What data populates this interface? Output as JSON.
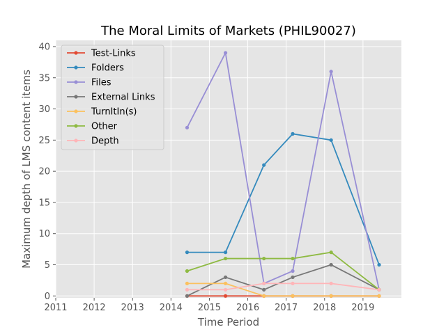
{
  "chart_data": {
    "type": "line",
    "title": "The Moral Limits of Markets (PHIL90027)",
    "xlabel": "Time Period",
    "ylabel": "Maximum depth of LMS content items",
    "xlim": [
      2011.0,
      2020.0
    ],
    "ylim": [
      -0.3,
      41.0
    ],
    "xticks": [
      2011,
      2012,
      2013,
      2014,
      2015,
      2016,
      2017,
      2018,
      2019
    ],
    "yticks": [
      0,
      5,
      10,
      15,
      20,
      25,
      30,
      35,
      40
    ],
    "grid": true,
    "legend_position": "top-left",
    "x": [
      2014.42,
      2015.42,
      2016.42,
      2017.17,
      2018.17,
      2019.42
    ],
    "series": [
      {
        "name": "Test-Links",
        "color": "#E24A33",
        "values": [
          0,
          0,
          0,
          0,
          0,
          0
        ]
      },
      {
        "name": "Folders",
        "color": "#348ABD",
        "values": [
          7,
          7,
          21,
          26,
          25,
          5
        ]
      },
      {
        "name": "Files",
        "color": "#988ED5",
        "values": [
          27,
          39,
          2,
          4,
          36,
          1
        ]
      },
      {
        "name": "External Links",
        "color": "#777777",
        "values": [
          0,
          3,
          1,
          3,
          5,
          1
        ]
      },
      {
        "name": "TurnItIn(s)",
        "color": "#FBC15E",
        "values": [
          2,
          2,
          0,
          0,
          0,
          0
        ]
      },
      {
        "name": "Other",
        "color": "#8EBA42",
        "values": [
          4,
          6,
          6,
          6,
          7,
          1
        ]
      },
      {
        "name": "Depth",
        "color": "#FFB5B8",
        "values": [
          1,
          1,
          2,
          2,
          2,
          1
        ]
      }
    ]
  }
}
